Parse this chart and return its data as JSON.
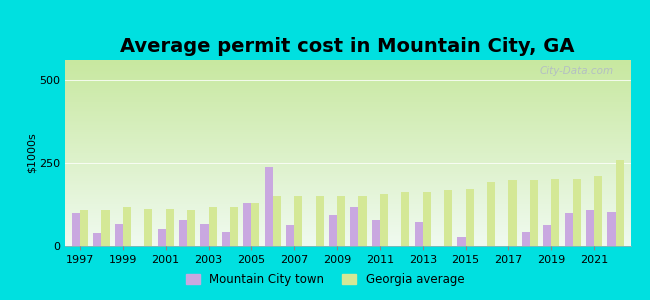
{
  "title": "Average permit cost in Mountain City, GA",
  "ylabel": "$1000s",
  "years": [
    1997,
    1998,
    1999,
    2000,
    2001,
    2002,
    2003,
    2004,
    2005,
    2006,
    2007,
    2008,
    2009,
    2010,
    2011,
    2012,
    2013,
    2014,
    2015,
    2016,
    2017,
    2018,
    2019,
    2020,
    2021,
    2022
  ],
  "mountain_city": [
    100,
    38,
    65,
    0,
    52,
    78,
    65,
    42,
    130,
    238,
    62,
    0,
    92,
    118,
    78,
    0,
    72,
    0,
    28,
    0,
    0,
    42,
    62,
    98,
    108,
    102
  ],
  "georgia_avg": [
    108,
    108,
    118,
    112,
    112,
    108,
    118,
    118,
    128,
    152,
    152,
    152,
    152,
    152,
    158,
    162,
    162,
    168,
    172,
    192,
    198,
    198,
    202,
    202,
    212,
    258
  ],
  "bar_color_mountain": "#c9a8e0",
  "bar_color_georgia": "#d4e896",
  "bg_outer": "#00e0e0",
  "yticks": [
    0,
    250,
    500
  ],
  "ylim": [
    0,
    560
  ],
  "title_fontsize": 14,
  "ylabel_fontsize": 8,
  "watermark": "City-Data.com",
  "legend_mountain": "Mountain City town",
  "legend_georgia": "Georgia average",
  "grad_top": "#c8e8a0",
  "grad_bottom": "#f0faf0"
}
